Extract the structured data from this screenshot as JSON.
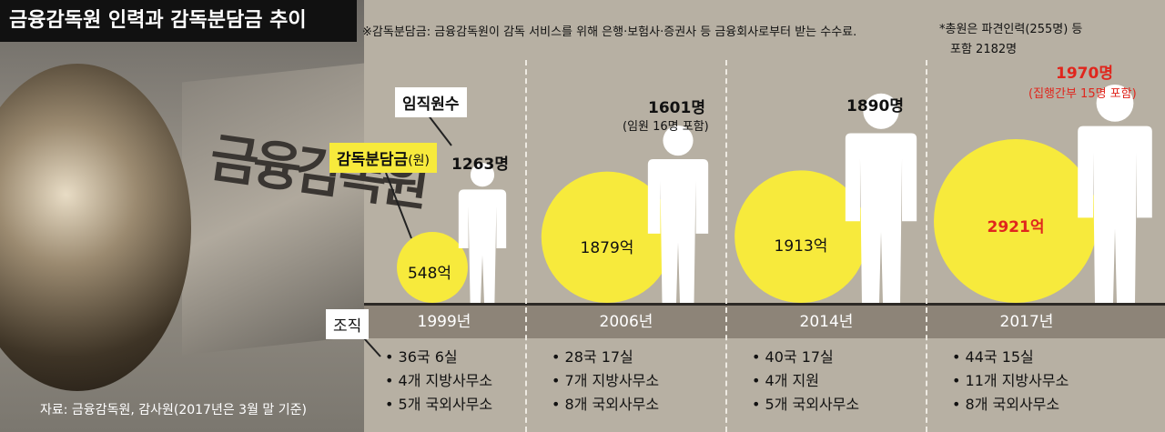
{
  "title": "금융감독원 인력과 감독분담금 추이",
  "note_fee": "※감독분담금: 금융감독원이 감독 서비스를 위해 은행·보험사·증권사 등 금융회사로부터 받는 수수료.",
  "note_staff_line1": "*총원은 파견인력(255명) 등",
  "note_staff_line2": "포함 2182명",
  "source": "자료: 금융감독원, 감사원(2017년은 3월 말 기준)",
  "legend": {
    "staff_label": "임직원수",
    "fee_label": "감독분담금",
    "fee_unit": "(원)",
    "org_label": "조직"
  },
  "colors": {
    "bubble": "#f7ea3c",
    "highlight": "#e0261d",
    "person": "#ffffff"
  },
  "chart_data": {
    "type": "bubble",
    "categories": [
      "1999년",
      "2006년",
      "2014년",
      "2017년"
    ],
    "series": [
      {
        "name": "감독분담금",
        "values": [
          548,
          1879,
          1913,
          2921
        ]
      },
      {
        "name": "임직원수",
        "values": [
          1263,
          1601,
          1890,
          1970
        ]
      }
    ],
    "value_labels_fee": [
      "548억",
      "1879억",
      "1913억",
      "2921억"
    ],
    "value_labels_staff": [
      "1263명",
      "1601명",
      "1890명",
      "1970명"
    ],
    "staff_notes": [
      "",
      "(임원 16명 포함)",
      "",
      "(집행간부 15명 포함)"
    ],
    "highlight_index": 3
  },
  "org": [
    [
      "• 36국 6실",
      "• 4개 지방사무소",
      "• 5개 국외사무소"
    ],
    [
      "• 28국 17실",
      "• 7개 지방사무소",
      "• 8개 국외사무소"
    ],
    [
      "• 40국 17실",
      "• 4개 지원",
      "• 5개 국외사무소"
    ],
    [
      "• 44국 15실",
      "• 11개 지방사무소",
      "• 8개 국외사무소"
    ]
  ],
  "photo": {
    "plate_text": "금융감독원"
  }
}
